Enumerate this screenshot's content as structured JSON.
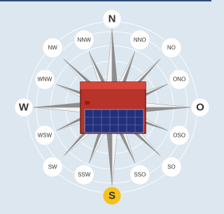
{
  "directions": [
    "N",
    "NNO",
    "NO",
    "ONO",
    "O",
    "OSO",
    "SO",
    "SSO",
    "S",
    "SSW",
    "SW",
    "WSW",
    "W",
    "WNW",
    "NW",
    "NNW"
  ]
}
